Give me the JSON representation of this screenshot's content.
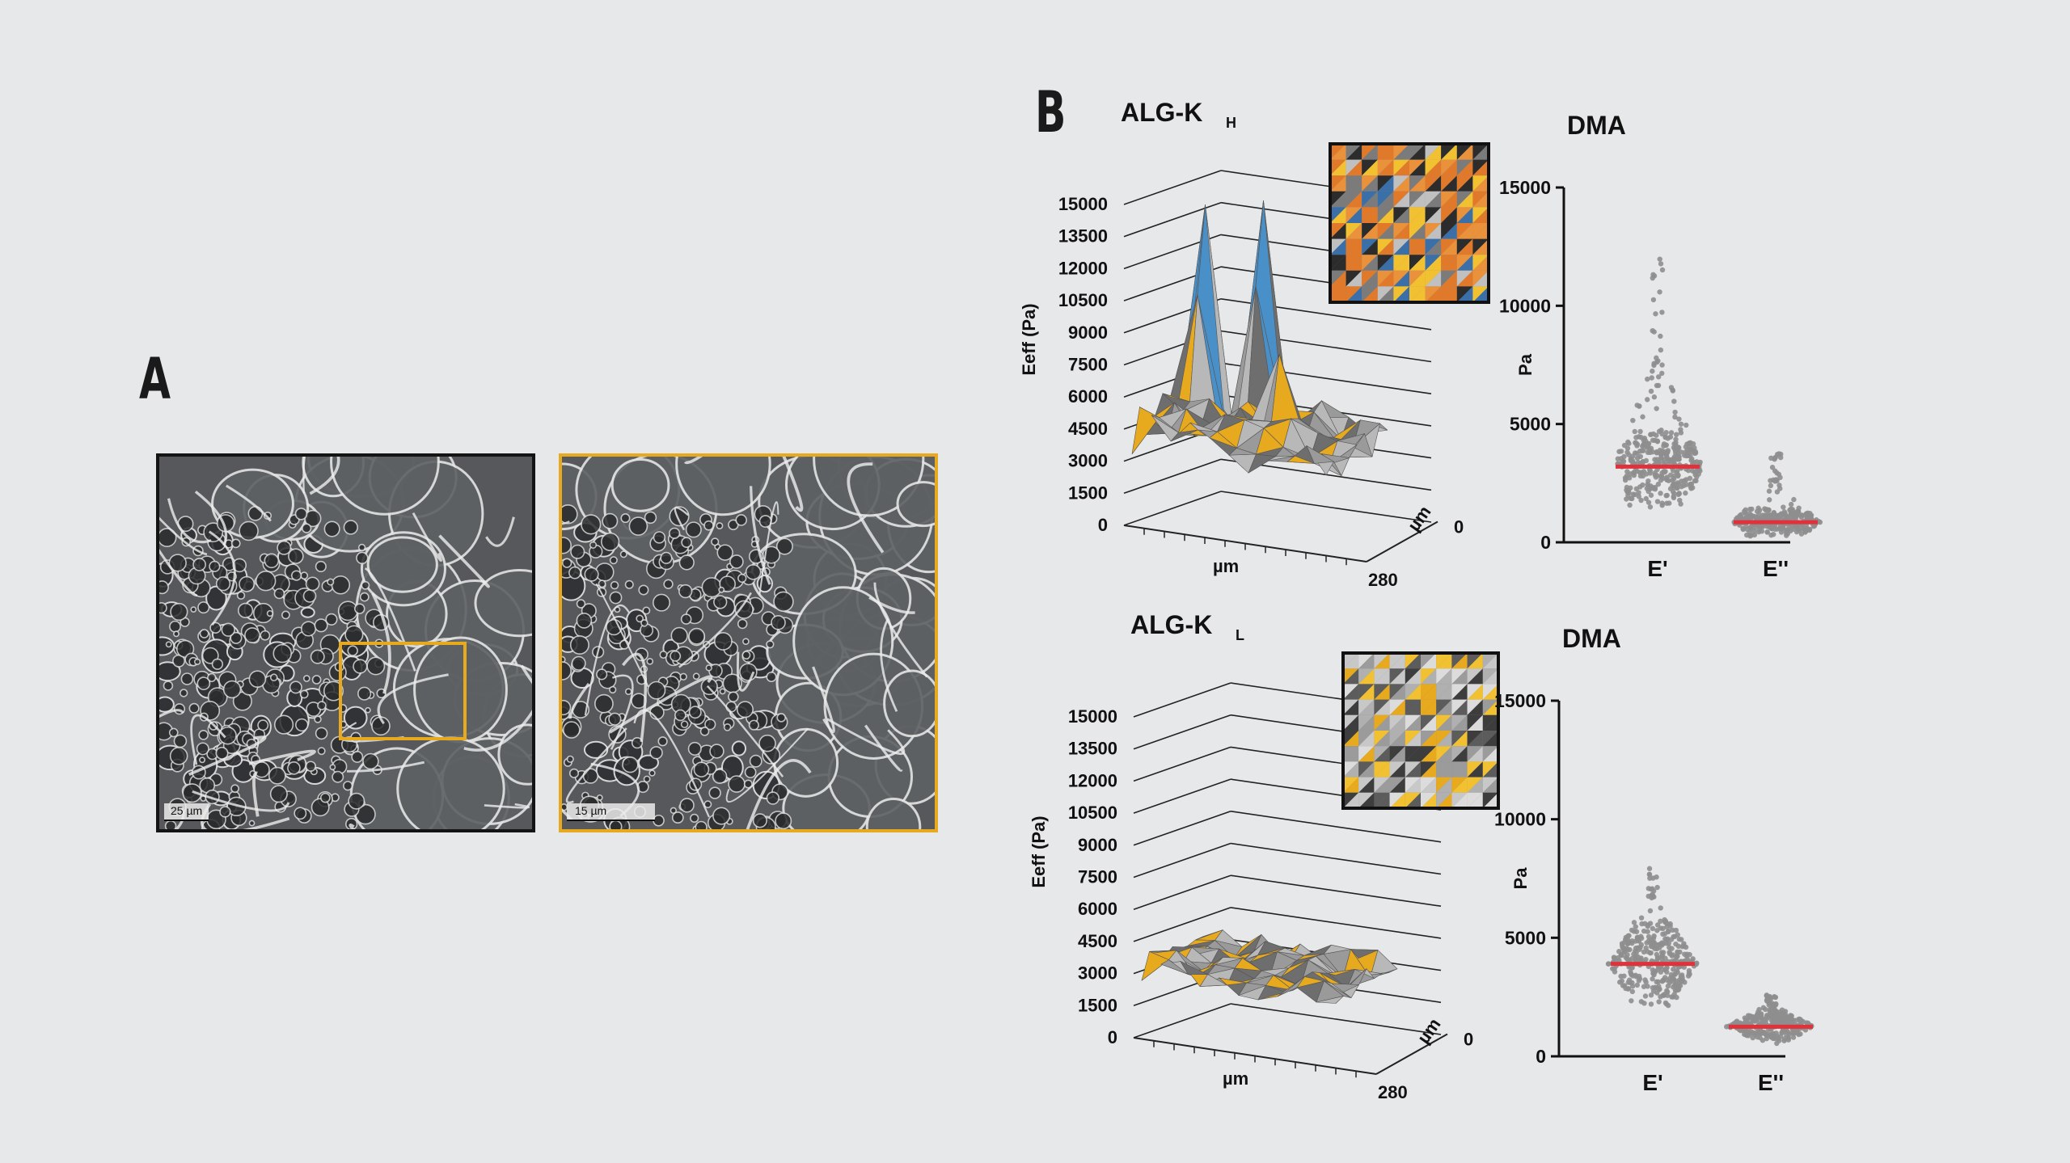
{
  "panel_a": {
    "label": "A",
    "left_image": {
      "scale_label": "25 µm"
    },
    "right_image": {
      "scale_label": "15 µm"
    }
  },
  "panel_b": {
    "label": "B"
  },
  "colors": {
    "highlight": "#e7a91d",
    "median_line": "#e0323c",
    "points": "#8e8e8e"
  },
  "chart_data": [
    {
      "type": "surface3d",
      "title": "ALG-K",
      "title_subscript": "H",
      "zlabel": "Eeff (Pa)",
      "z_ticks": [
        0,
        1500,
        3000,
        4500,
        6000,
        7500,
        9000,
        10500,
        12000,
        13500,
        15000
      ],
      "x_axis_label": "µm",
      "x_end_label": "280",
      "y_axis_label": "µm",
      "y_start_label": "0"
    },
    {
      "type": "scatter",
      "title": "DMA",
      "ylabel": "Pa",
      "ylim": [
        0,
        15000
      ],
      "y_ticks": [
        0,
        5000,
        10000,
        15000
      ],
      "categories": [
        "E'",
        "E''"
      ],
      "median": [
        3200,
        850
      ],
      "spread": [
        [
          1200,
          12000
        ],
        [
          150,
          3800
        ]
      ]
    },
    {
      "type": "surface3d",
      "title": "ALG-K",
      "title_subscript": "L",
      "zlabel": "Eeff (Pa)",
      "z_ticks": [
        0,
        1500,
        3000,
        4500,
        6000,
        7500,
        9000,
        10500,
        12000,
        13500,
        15000
      ],
      "x_axis_label": "µm",
      "x_end_label": "280",
      "y_axis_label": "µm",
      "y_start_label": "0"
    },
    {
      "type": "scatter",
      "title": "DMA",
      "ylabel": "Pa",
      "ylim": [
        0,
        15000
      ],
      "y_ticks": [
        0,
        5000,
        10000,
        15000
      ],
      "categories": [
        "E'",
        "E''"
      ],
      "median": [
        3900,
        1250
      ],
      "spread": [
        [
          1800,
          8500
        ],
        [
          400,
          2600
        ]
      ]
    }
  ]
}
